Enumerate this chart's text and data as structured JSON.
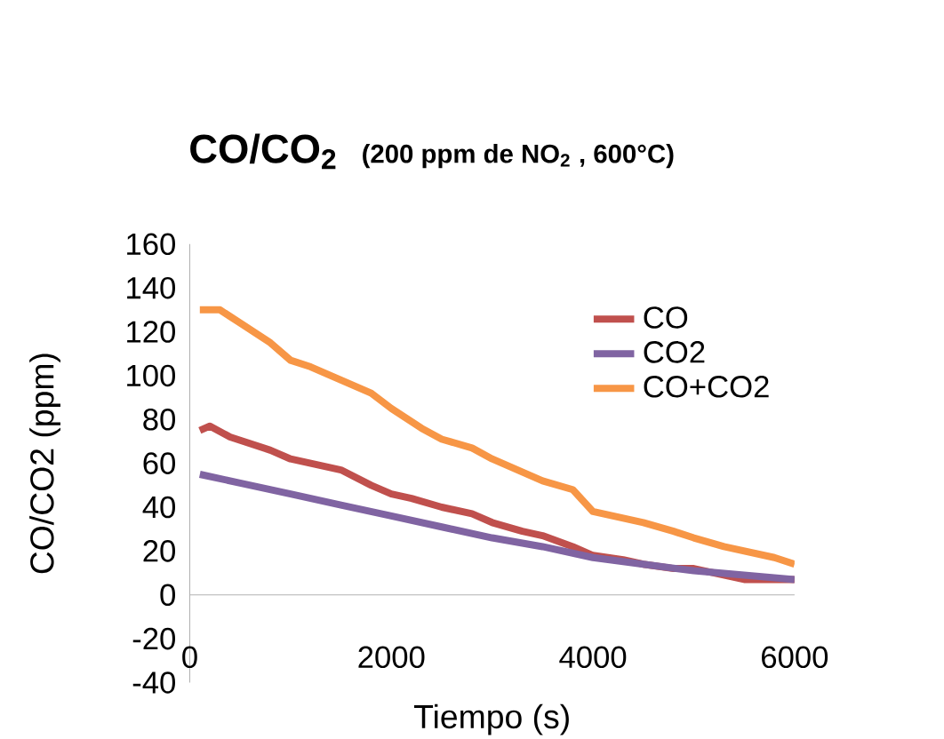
{
  "chart_data": {
    "type": "line",
    "title": "CO/CO$_{2}$",
    "subtitle": "(200 ppm de NO$_{2}$ , 600°C)",
    "xlabel": "Tiempo (s)",
    "ylabel": "CO/CO2 (ppm)",
    "xlim": [
      0,
      6000
    ],
    "xticks": [
      0,
      2000,
      4000,
      6000
    ],
    "ylim": [
      -40,
      160
    ],
    "yticks": [
      -40,
      -20,
      0,
      20,
      40,
      60,
      80,
      100,
      120,
      140,
      160
    ],
    "grid": false,
    "legend": "right",
    "marker": "none",
    "line_style": "solid",
    "series": [
      {
        "name": "CO",
        "color": "#c0504d",
        "x": [
          100,
          200,
          400,
          600,
          800,
          1000,
          1200,
          1500,
          1800,
          2000,
          2200,
          2500,
          2800,
          3000,
          3300,
          3500,
          3800,
          4000,
          4300,
          4500,
          4800,
          5000,
          5300,
          5500,
          5800,
          6000
        ],
        "values": [
          75,
          77,
          72,
          69,
          66,
          62,
          60,
          57,
          50,
          46,
          44,
          40,
          37,
          33,
          29,
          27,
          22,
          18,
          16,
          14,
          12,
          12,
          9,
          7,
          7,
          7
        ]
      },
      {
        "name": "CO2",
        "color": "#8064a2",
        "x": [
          100,
          500,
          1000,
          1500,
          2000,
          2500,
          3000,
          3500,
          4000,
          4500,
          5000,
          5500,
          6000
        ],
        "values": [
          55,
          51,
          46,
          41,
          36,
          31,
          26,
          22,
          17,
          14,
          11,
          9,
          7
        ]
      },
      {
        "name": "CO+CO2",
        "color": "#f79646",
        "x": [
          100,
          300,
          500,
          800,
          1000,
          1200,
          1500,
          1800,
          2000,
          2300,
          2500,
          2800,
          3000,
          3300,
          3500,
          3800,
          4000,
          4300,
          4500,
          4800,
          5000,
          5300,
          5500,
          5800,
          6000
        ],
        "values": [
          130,
          130,
          124,
          115,
          107,
          104,
          98,
          92,
          85,
          76,
          71,
          67,
          62,
          56,
          52,
          48,
          38,
          35,
          33,
          29,
          26,
          22,
          20,
          17,
          14
        ]
      }
    ]
  }
}
